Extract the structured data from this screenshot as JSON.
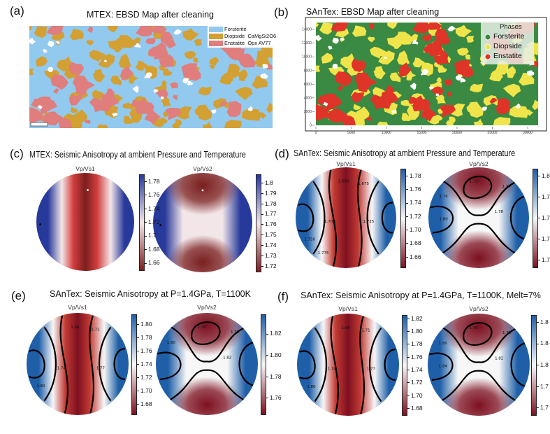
{
  "colors": {
    "mtex": {
      "forsterite": "#92c9ee",
      "diopside": "#d3a033",
      "enstatite": "#e07d7d"
    },
    "santex": {
      "forsterite": "#3b8a43",
      "diopside": "#efe54a",
      "enstatite": "#df3428"
    },
    "mtex_cmap": {
      "blue": "#27399b",
      "white": "#f3e6e8",
      "red": "#d23c3c",
      "dark": "#7a1f1f"
    },
    "santex_cmap": {
      "blue": "#1f5fa8",
      "white": "#f7f7f7",
      "red": "#c23a33",
      "dark": "#7d1020"
    }
  },
  "chart_data": [
    {
      "panel": "(a)",
      "type": "heatmap",
      "title": "MTEX: EBSD Map after cleaning",
      "legend": [
        "Forsterite",
        "Diopside  CaMgSi2O6",
        "Enstatite  Opx AV77"
      ],
      "legend_placement": "top-right"
    },
    {
      "panel": "(b)",
      "type": "heatmap",
      "title": "SAnTex: EBSD Map after cleaning",
      "legend_title": "Phases",
      "legend": [
        "Forsterite",
        "Diopside",
        "Enstatite"
      ],
      "legend_placement": "top-right",
      "x_ticks": [
        0,
        5000,
        10000,
        15000,
        20000,
        25000,
        30000
      ],
      "y_ticks": [
        0,
        2000,
        4000,
        6000,
        8000,
        10000,
        12000,
        14000
      ],
      "xlim": [
        0,
        31500
      ],
      "ylim": [
        0,
        15000
      ]
    },
    {
      "panel": "(c)",
      "type": "heatmap",
      "title": "MTEX: Seismic Anisotropy at ambient Pressure and Temperature",
      "style": "mtex",
      "plots": [
        {
          "subtitle": "Vp/Vs1",
          "pattern": "vs1",
          "range": [
            1.65,
            1.79
          ],
          "ticks": [
            "1.66",
            "1.68",
            "1.7",
            "1.72",
            "1.74",
            "1.76",
            "1.78"
          ],
          "tick_values": [
            1.66,
            1.68,
            1.7,
            1.72,
            1.74,
            1.76,
            1.78
          ],
          "contour_labels": []
        },
        {
          "subtitle": "Vp/Vs2",
          "pattern": "vs2",
          "range": [
            1.715,
            1.808
          ],
          "ticks": [
            "1.72",
            "1.73",
            "1.74",
            "1.75",
            "1.76",
            "1.77",
            "1.78",
            "1.79",
            "1.8"
          ],
          "tick_values": [
            1.72,
            1.73,
            1.74,
            1.75,
            1.76,
            1.77,
            1.78,
            1.79,
            1.8
          ],
          "contour_labels": []
        }
      ]
    },
    {
      "panel": "(d)",
      "type": "heatmap",
      "title": "SAnTex: Seismic Anisotropy at ambient Pressure and Temperature",
      "style": "santex",
      "plots": [
        {
          "subtitle": "Vp/Vs1",
          "pattern": "vs1",
          "range": [
            1.645,
            1.79
          ],
          "ticks": [
            "1.66",
            "1.68",
            "1.70",
            "1.72",
            "1.74",
            "1.76",
            "1.78"
          ],
          "tick_values": [
            1.66,
            1.68,
            1.7,
            1.72,
            1.74,
            1.76,
            1.78
          ],
          "contour_labels": [
            "1.650",
            "1.675",
            "1.700",
            "1.725",
            "1.750",
            "1.775"
          ]
        },
        {
          "subtitle": "Vp/Vs2",
          "pattern": "vs2",
          "ticks": [
            "1.8",
            "1.7",
            "1.7",
            "1.7",
            "1.7"
          ],
          "contour_labels": [
            "1.72",
            "1.74",
            "1.76",
            "1.78",
            "1.80"
          ]
        }
      ]
    },
    {
      "panel": "(e)",
      "type": "heatmap",
      "title": "SAnTex: Seismic Anisotropy at P=1.4GPa, T=1100K",
      "style": "santex",
      "plots": [
        {
          "subtitle": "Vp/Vs1",
          "pattern": "vs1",
          "range": [
            1.665,
            1.815
          ],
          "ticks": [
            "1.68",
            "1.70",
            "1.72",
            "1.74",
            "1.76",
            "1.78",
            "1.80"
          ],
          "tick_values": [
            1.68,
            1.7,
            1.72,
            1.74,
            1.76,
            1.78,
            1.8
          ],
          "contour_labels": [
            "1.68",
            "1.71",
            "1.74",
            "1.77",
            "1.80"
          ]
        },
        {
          "subtitle": "Vp/Vs2",
          "pattern": "vs2",
          "range": [
            1.745,
            1.838
          ],
          "ticks": [
            "1.76",
            "1.78",
            "1.80",
            "1.82"
          ],
          "tick_values": [
            1.76,
            1.78,
            1.8,
            1.82
          ],
          "contour_labels": [
            "1.76",
            "1.78",
            "1.80",
            "1.82"
          ]
        }
      ]
    },
    {
      "panel": "(f)",
      "type": "heatmap",
      "title": "SAnTex: Seismic Anisotropy at P=1.4GPa, T=1100K, Melt=7%",
      "style": "santex",
      "plots": [
        {
          "subtitle": "Vp/Vs1",
          "pattern": "vs1",
          "range": [
            1.67,
            1.825
          ],
          "ticks": [
            "1.68",
            "1.70",
            "1.72",
            "1.74",
            "1.76",
            "1.78",
            "1.80",
            "1.82"
          ],
          "tick_values": [
            1.68,
            1.7,
            1.72,
            1.74,
            1.76,
            1.78,
            1.8,
            1.82
          ],
          "contour_labels": [
            "1.68",
            "1.71",
            "1.74",
            "1.77",
            "1.80"
          ]
        },
        {
          "subtitle": "Vp/Vs2",
          "pattern": "vs2",
          "ticks": [
            "1.8",
            "1.8",
            "1.8",
            "1.7",
            "1.7"
          ],
          "contour_labels": [
            "1.76",
            "1.78",
            "1.80",
            "1.82",
            "1.84"
          ]
        }
      ]
    }
  ]
}
